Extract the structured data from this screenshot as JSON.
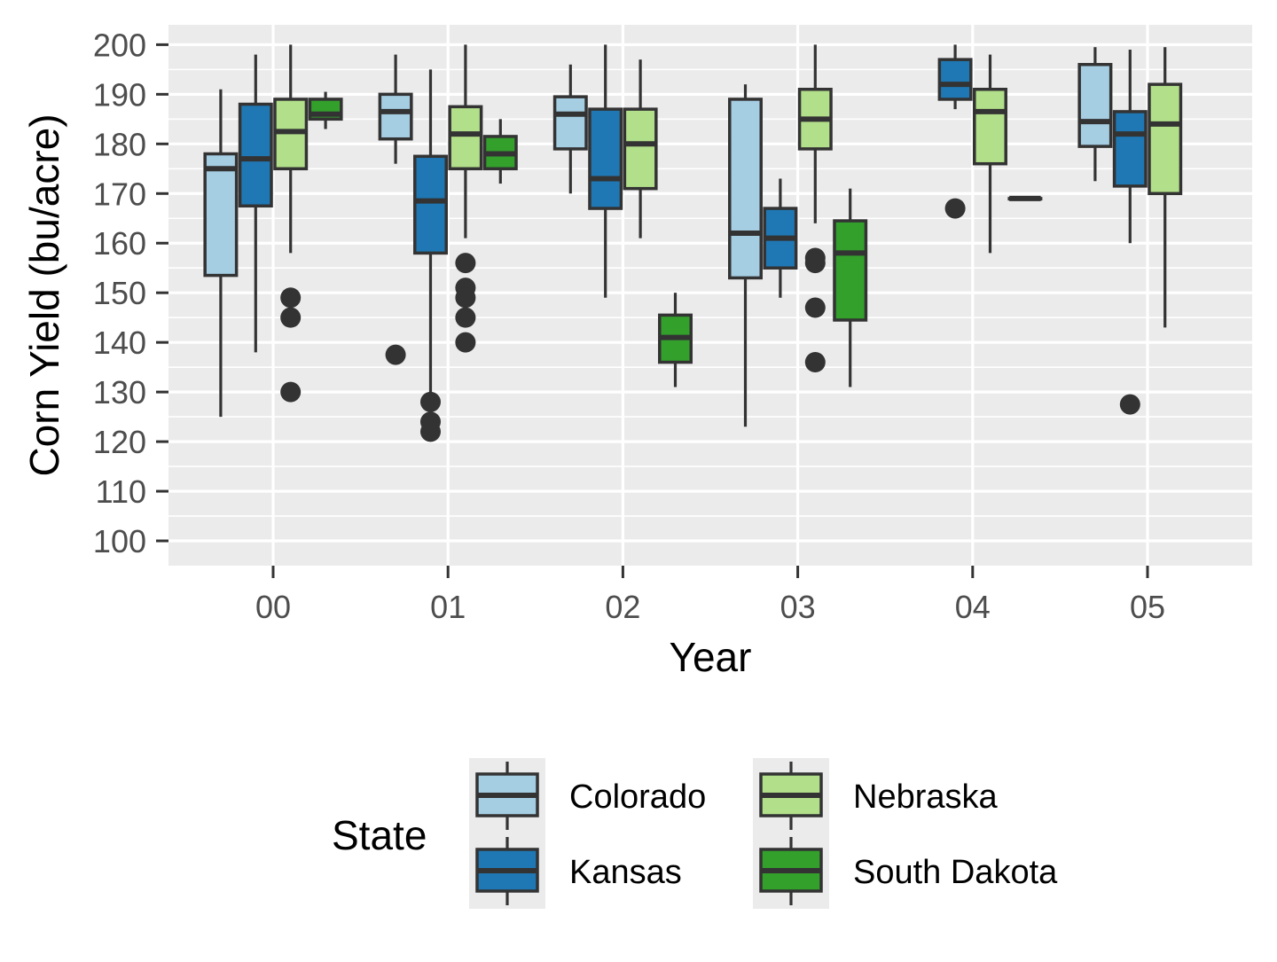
{
  "chart_data": {
    "type": "boxplot",
    "xlabel": "Year",
    "ylabel": "Corn Yield (bu/acre)",
    "ylim": [
      95,
      204
    ],
    "yticks": [
      100,
      110,
      120,
      130,
      140,
      150,
      160,
      170,
      180,
      190,
      200
    ],
    "categories": [
      "00",
      "01",
      "02",
      "03",
      "04",
      "05"
    ],
    "grid": true,
    "legend": {
      "title": "State",
      "position": "bottom",
      "entries": [
        "Colorado",
        "Kansas",
        "Nebraska",
        "South Dakota"
      ]
    },
    "colors": {
      "Colorado": "#a6cee3",
      "Kansas": "#1f78b4",
      "Nebraska": "#b2df8a",
      "South Dakota": "#33a02c",
      "panel_bg": "#ebebeb",
      "grid": "#ffffff",
      "outline": "#333333"
    },
    "series": [
      {
        "name": "Colorado",
        "boxes": [
          {
            "x": "00",
            "lower": 125,
            "q1": 153.5,
            "median": 175,
            "q3": 178,
            "upper": 191,
            "outliers": []
          },
          {
            "x": "01",
            "lower": 176,
            "q1": 181,
            "median": 186.5,
            "q3": 190,
            "upper": 198,
            "outliers": [
              137.5
            ]
          },
          {
            "x": "02",
            "lower": 170,
            "q1": 179,
            "median": 186,
            "q3": 189.5,
            "upper": 196,
            "outliers": []
          },
          {
            "x": "03",
            "lower": 123,
            "q1": 153,
            "median": 162,
            "q3": 189,
            "upper": 192,
            "outliers": []
          },
          {
            "x": "05",
            "lower": 172.5,
            "q1": 179.5,
            "median": 184.5,
            "q3": 196,
            "upper": 199.5,
            "outliers": []
          }
        ]
      },
      {
        "name": "Kansas",
        "boxes": [
          {
            "x": "00",
            "lower": 138,
            "q1": 167.5,
            "median": 177,
            "q3": 188,
            "upper": 198,
            "outliers": []
          },
          {
            "x": "01",
            "lower": 128,
            "q1": 158,
            "median": 168.5,
            "q3": 177.5,
            "upper": 195,
            "outliers": [
              128,
              124,
              122
            ]
          },
          {
            "x": "02",
            "lower": 149,
            "q1": 167,
            "median": 173,
            "q3": 187,
            "upper": 200,
            "outliers": []
          },
          {
            "x": "03",
            "lower": 149,
            "q1": 155,
            "median": 161,
            "q3": 167,
            "upper": 173,
            "outliers": []
          },
          {
            "x": "04",
            "lower": 187,
            "q1": 189,
            "median": 192,
            "q3": 197,
            "upper": 200,
            "outliers": [
              167
            ]
          },
          {
            "x": "05",
            "lower": 160,
            "q1": 171.5,
            "median": 182,
            "q3": 186.5,
            "upper": 199,
            "outliers": [
              127.5
            ]
          }
        ]
      },
      {
        "name": "Nebraska",
        "boxes": [
          {
            "x": "00",
            "lower": 158,
            "q1": 175,
            "median": 182.5,
            "q3": 189,
            "upper": 200,
            "outliers": [
              149,
              145,
              130
            ]
          },
          {
            "x": "01",
            "lower": 161,
            "q1": 175,
            "median": 182,
            "q3": 187.5,
            "upper": 200,
            "outliers": [
              156,
              151,
              149,
              145,
              140
            ]
          },
          {
            "x": "02",
            "lower": 161,
            "q1": 171,
            "median": 180,
            "q3": 187,
            "upper": 197,
            "outliers": []
          },
          {
            "x": "03",
            "lower": 164,
            "q1": 179,
            "median": 185,
            "q3": 191,
            "upper": 200,
            "outliers": [
              157,
              156,
              147,
              136
            ]
          },
          {
            "x": "04",
            "lower": 158,
            "q1": 176,
            "median": 186.5,
            "q3": 191,
            "upper": 198,
            "outliers": []
          },
          {
            "x": "05",
            "lower": 143,
            "q1": 170,
            "median": 184,
            "q3": 192,
            "upper": 199.5,
            "outliers": []
          }
        ]
      },
      {
        "name": "South Dakota",
        "boxes": [
          {
            "x": "00",
            "lower": 183,
            "q1": 185,
            "median": 186,
            "q3": 189,
            "upper": 190.5,
            "outliers": []
          },
          {
            "x": "01",
            "lower": 172,
            "q1": 175,
            "median": 178,
            "q3": 181.5,
            "upper": 185,
            "outliers": []
          },
          {
            "x": "02",
            "lower": 131,
            "q1": 136,
            "median": 141,
            "q3": 145.5,
            "upper": 150,
            "outliers": []
          },
          {
            "x": "03",
            "lower": 131,
            "q1": 144.5,
            "median": 158,
            "q3": 164.5,
            "upper": 171,
            "outliers": []
          },
          {
            "x": "04",
            "lower": 169,
            "q1": 169,
            "median": 169,
            "q3": 169,
            "upper": 169,
            "outliers": []
          }
        ]
      }
    ]
  }
}
